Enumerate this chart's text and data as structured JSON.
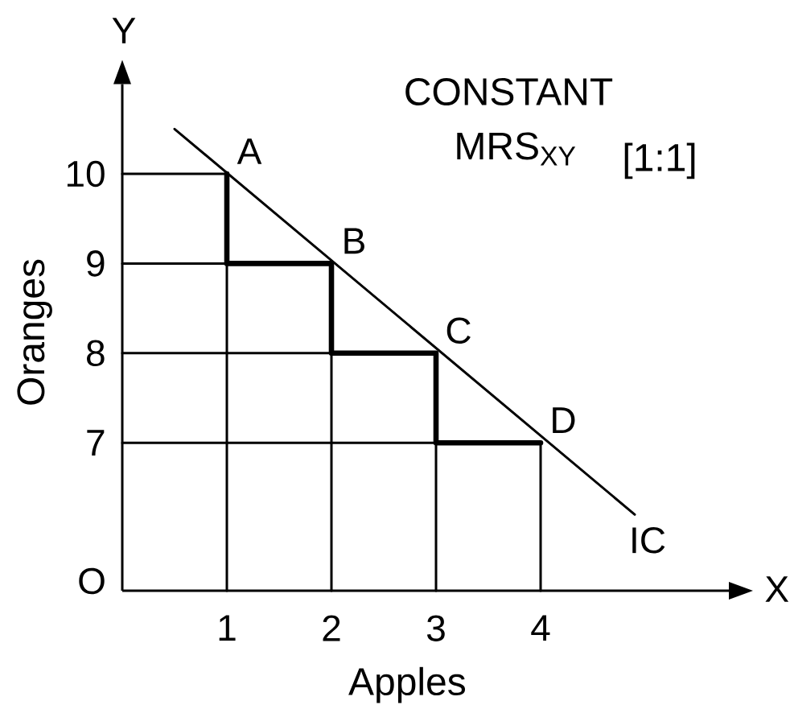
{
  "chart_data": {
    "type": "line",
    "title": "CONSTANT",
    "subtitle": "MRS$_{XY}$",
    "xlabel": "Apples",
    "ylabel": "Oranges",
    "xlim": [
      0,
      5.8
    ],
    "ylim": [
      5.35,
      11.0
    ],
    "xticks": [
      1,
      2,
      3,
      4
    ],
    "yticks": [
      7,
      8,
      9,
      10
    ],
    "series": [
      {
        "name": "IC",
        "color": "#000000",
        "x": [
          0.5,
          4.9
        ],
        "values": [
          10.5,
          6.2
        ]
      },
      {
        "type": "step",
        "color": "#000000",
        "x": [
          1,
          2,
          3,
          4
        ],
        "values": [
          10,
          9,
          8,
          7
        ]
      },
      {
        "color": "#000000",
        "x": [
          0,
          1,
          1
        ],
        "values": [
          10,
          10,
          5.35
        ]
      },
      {
        "color": "#000000",
        "x": [
          0,
          2,
          2
        ],
        "values": [
          9,
          9,
          5.35
        ]
      },
      {
        "color": "#000000",
        "x": [
          0,
          3,
          3
        ],
        "values": [
          8,
          8,
          5.35
        ]
      },
      {
        "color": "#000000",
        "x": [
          0,
          4,
          4
        ],
        "values": [
          7,
          7,
          5.35
        ]
      }
    ],
    "annotations": [
      {
        "text": "A",
        "x": 1,
        "y": 10
      },
      {
        "text": "B",
        "x": 2,
        "y": 9
      },
      {
        "text": "C",
        "x": 3,
        "y": 8
      },
      {
        "text": "D",
        "x": 4,
        "y": 7
      },
      "[1:1]",
      "Y",
      "X",
      "O"
    ]
  }
}
